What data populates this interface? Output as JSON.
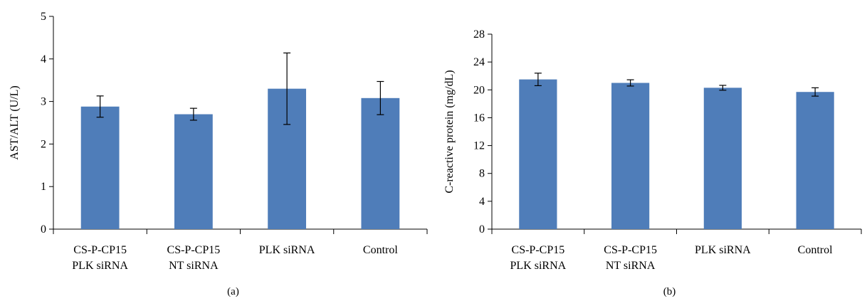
{
  "chart_data": [
    {
      "type": "bar",
      "panel_label": "(a)",
      "title": "",
      "xlabel": "",
      "ylabel": "AST/ALT (U/L)",
      "ylim": [
        0,
        5
      ],
      "yticks": [
        0,
        1,
        2,
        3,
        4,
        5
      ],
      "categories": [
        [
          "CS-P-CP15",
          "PLK siRNA"
        ],
        [
          "CS-P-CP15",
          "NT siRNA"
        ],
        [
          "PLK siRNA"
        ],
        [
          "Control"
        ]
      ],
      "values": [
        2.88,
        2.7,
        3.3,
        3.08
      ],
      "errors": [
        0.25,
        0.14,
        0.84,
        0.39
      ],
      "bar_color": "#4f7db9",
      "grid": false,
      "legend": "none"
    },
    {
      "type": "bar",
      "panel_label": "(b)",
      "title": "",
      "xlabel": "",
      "ylabel": "C-reactive protein (mg/dL)",
      "ylim": [
        0,
        28
      ],
      "yticks": [
        0,
        4,
        8,
        12,
        16,
        20,
        24,
        28
      ],
      "categories": [
        [
          "CS-P-CP15",
          "PLK siRNA"
        ],
        [
          "CS-P-CP15",
          "NT siRNA"
        ],
        [
          "PLK siRNA"
        ],
        [
          "Control"
        ]
      ],
      "values": [
        21.5,
        21.0,
        20.3,
        19.7
      ],
      "errors": [
        0.9,
        0.45,
        0.35,
        0.6
      ],
      "bar_color": "#4f7db9",
      "grid": false,
      "legend": "none"
    }
  ]
}
